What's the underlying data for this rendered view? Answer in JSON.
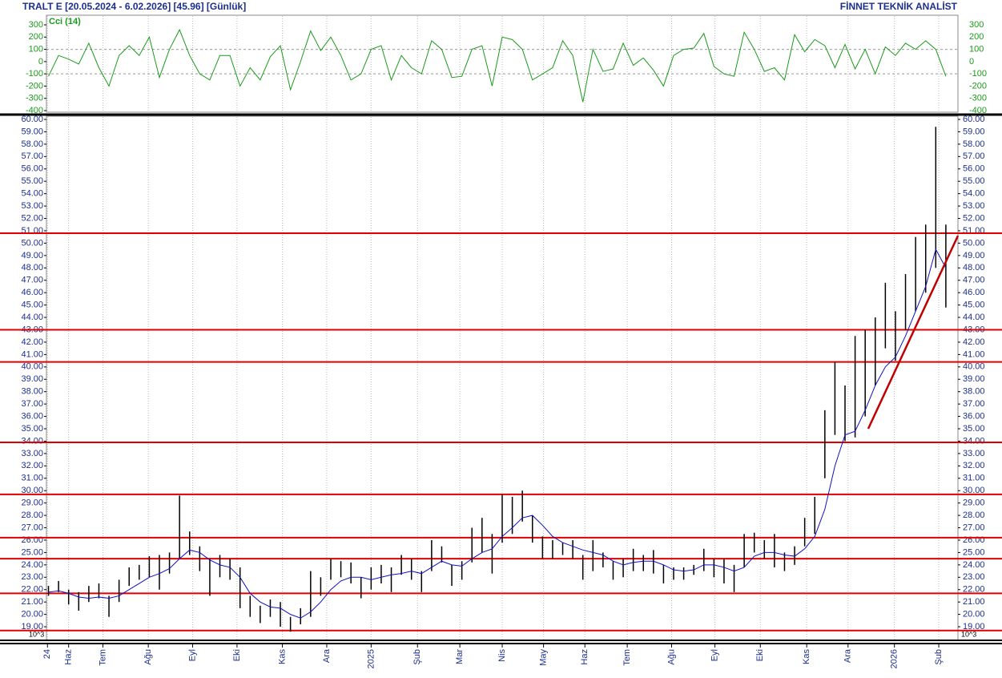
{
  "chart_data": {
    "type": "ohlc",
    "title": "TRALT E  [20.05.2024 - 6.02.2026]  [45.96]  [Günlük]",
    "source": "FİNNET TEKNİK ANALİST",
    "scale_label": "10^3",
    "bar_color": "#000000",
    "ma_color": "#1010c0",
    "level_color": "#e00000",
    "grid": {
      "x": true
    },
    "xlim": [
      -0.2,
      90.2
    ],
    "xticks": [
      {
        "value": -0.1,
        "label": "24"
      },
      {
        "value": 2,
        "label": "Haz"
      },
      {
        "value": 5.4,
        "label": "Tem"
      },
      {
        "value": 9.9,
        "label": "Ağu"
      },
      {
        "value": 14.3,
        "label": "Eyl"
      },
      {
        "value": 18.7,
        "label": "Eki"
      },
      {
        "value": 23.2,
        "label": "Kas"
      },
      {
        "value": 27.6,
        "label": "Ara"
      },
      {
        "value": 32,
        "label": "2025"
      },
      {
        "value": 36.6,
        "label": "Şub"
      },
      {
        "value": 40.8,
        "label": "Mar"
      },
      {
        "value": 45,
        "label": "Nis"
      },
      {
        "value": 49.1,
        "label": "May"
      },
      {
        "value": 53.2,
        "label": "Haz"
      },
      {
        "value": 57.4,
        "label": "Tem"
      },
      {
        "value": 61.8,
        "label": "Ağu"
      },
      {
        "value": 66.1,
        "label": "Eyl"
      },
      {
        "value": 70.6,
        "label": "Eki"
      },
      {
        "value": 75.2,
        "label": "Kas"
      },
      {
        "value": 79.3,
        "label": "Ara"
      },
      {
        "value": 83.9,
        "label": "2026"
      },
      {
        "value": 88.3,
        "label": "Şub"
      }
    ],
    "ylim": [
      18,
      60
    ],
    "yticks": [
      {
        "value": 19,
        "label": "19.00"
      },
      {
        "value": 20,
        "label": "20.00"
      },
      {
        "value": 21,
        "label": "21.00"
      },
      {
        "value": 22,
        "label": "22.00"
      },
      {
        "value": 23,
        "label": "23.00"
      },
      {
        "value": 24,
        "label": "24.00"
      },
      {
        "value": 25,
        "label": "25.00"
      },
      {
        "value": 26,
        "label": "26.00"
      },
      {
        "value": 27,
        "label": "27.00"
      },
      {
        "value": 28,
        "label": "28.00"
      },
      {
        "value": 29,
        "label": "29.00"
      },
      {
        "value": 30,
        "label": "30.00"
      },
      {
        "value": 31,
        "label": "31.00"
      },
      {
        "value": 32,
        "label": "32.00"
      },
      {
        "value": 33,
        "label": "33.00"
      },
      {
        "value": 34,
        "label": "34.00"
      },
      {
        "value": 35,
        "label": "35.00"
      },
      {
        "value": 36,
        "label": "36.00"
      },
      {
        "value": 37,
        "label": "37.00"
      },
      {
        "value": 38,
        "label": "38.00"
      },
      {
        "value": 39,
        "label": "39.00"
      },
      {
        "value": 40,
        "label": "40.00"
      },
      {
        "value": 41,
        "label": "41.00"
      },
      {
        "value": 42,
        "label": "42.00"
      },
      {
        "value": 43,
        "label": "43.00"
      },
      {
        "value": 44,
        "label": "44.00"
      },
      {
        "value": 45,
        "label": "45.00"
      },
      {
        "value": 46,
        "label": "46.00"
      },
      {
        "value": 47,
        "label": "47.00"
      },
      {
        "value": 48,
        "label": "48.00"
      },
      {
        "value": 49,
        "label": "49.00"
      },
      {
        "value": 50,
        "label": "50.00"
      },
      {
        "value": 51,
        "label": "51.00"
      },
      {
        "value": 52,
        "label": "52.00"
      },
      {
        "value": 53,
        "label": "53.00"
      },
      {
        "value": 54,
        "label": "54.00"
      },
      {
        "value": 55,
        "label": "55.00"
      },
      {
        "value": 56,
        "label": "56.00"
      },
      {
        "value": 57,
        "label": "57.00"
      },
      {
        "value": 58,
        "label": "58.00"
      },
      {
        "value": 59,
        "label": "59.00"
      },
      {
        "value": 60,
        "label": "60.00"
      }
    ],
    "high": [
      22.3,
      22.7,
      22.0,
      21.8,
      22.3,
      22.5,
      21.5,
      22.8,
      23.8,
      24.0,
      24.7,
      24.8,
      25.0,
      29.6,
      26.7,
      25.5,
      24.5,
      24.8,
      24.5,
      23.8,
      21.5,
      20.7,
      21.2,
      21.0,
      19.8,
      20.5,
      23.5,
      23.0,
      24.5,
      24.3,
      24.2,
      23.0,
      23.8,
      24.0,
      23.8,
      24.8,
      24.5,
      23.5,
      26.0,
      25.5,
      24.0,
      24.3,
      27.0,
      27.8,
      26.5,
      29.7,
      29.5,
      30.0,
      28.0,
      26.3,
      26.0,
      25.8,
      26.0,
      24.8,
      26.0,
      25.0,
      24.3,
      24.5,
      25.3,
      24.8,
      25.2,
      24.0,
      23.8,
      23.8,
      24.0,
      25.3,
      24.5,
      24.5,
      24.0,
      26.5,
      26.6,
      26.0,
      26.5,
      25.0,
      25.5,
      27.8,
      29.5,
      36.5,
      40.4,
      38.5,
      42.5,
      43.0,
      44.0,
      46.8,
      44.5,
      47.5,
      50.5,
      51.5,
      59.4,
      51.5
    ],
    "low": [
      21.5,
      21.8,
      20.8,
      20.3,
      21.0,
      21.3,
      19.8,
      21.0,
      22.3,
      22.8,
      23.0,
      22.0,
      23.3,
      24.5,
      24.8,
      23.5,
      21.5,
      23.0,
      22.8,
      20.5,
      19.8,
      19.3,
      19.8,
      19.0,
      18.6,
      19.2,
      19.8,
      21.5,
      22.8,
      23.0,
      22.5,
      21.3,
      22.0,
      22.5,
      21.8,
      23.2,
      22.8,
      21.8,
      23.5,
      24.2,
      22.3,
      22.8,
      24.2,
      25.0,
      23.3,
      25.8,
      26.5,
      27.5,
      25.8,
      24.5,
      24.5,
      24.8,
      24.5,
      22.8,
      23.5,
      23.8,
      22.8,
      23.0,
      23.5,
      23.5,
      23.3,
      22.5,
      22.8,
      22.8,
      23.2,
      23.5,
      23.0,
      22.5,
      21.8,
      23.8,
      25.0,
      24.5,
      23.8,
      23.5,
      24.0,
      25.5,
      26.5,
      31.0,
      34.5,
      34.0,
      34.3,
      36.0,
      38.5,
      41.5,
      40.5,
      43.0,
      44.5,
      46.0,
      48.0,
      44.8
    ],
    "ma": [
      21.8,
      21.9,
      21.7,
      21.4,
      21.3,
      21.4,
      21.3,
      21.5,
      22.0,
      22.5,
      23.0,
      23.3,
      23.7,
      24.5,
      25.2,
      25.0,
      24.4,
      24.0,
      23.8,
      23.0,
      21.7,
      21.0,
      20.6,
      20.5,
      20.0,
      19.7,
      20.2,
      21.0,
      22.0,
      22.7,
      23.0,
      23.0,
      22.8,
      23.0,
      23.2,
      23.3,
      23.5,
      23.3,
      23.8,
      24.3,
      24.0,
      23.9,
      24.5,
      25.0,
      25.3,
      26.3,
      27.0,
      27.8,
      28.0,
      27.2,
      26.3,
      25.8,
      25.5,
      25.2,
      25.0,
      24.8,
      24.3,
      24.0,
      24.2,
      24.3,
      24.3,
      24.0,
      23.6,
      23.5,
      23.6,
      24.0,
      24.0,
      23.8,
      23.5,
      23.8,
      24.7,
      25.0,
      25.0,
      24.8,
      24.7,
      25.3,
      26.3,
      28.5,
      32.0,
      34.5,
      34.8,
      36.5,
      38.5,
      40.0,
      40.8,
      42.5,
      44.5,
      46.5,
      49.5,
      48.0
    ],
    "levels": [
      50.8,
      43.0,
      40.4,
      33.9,
      29.7,
      26.2,
      24.5,
      21.7,
      18.7
    ],
    "trendline": {
      "x": [
        81.3,
        90.2
      ],
      "y": [
        35.0,
        50.6
      ]
    },
    "indicator": {
      "label": "Cci (14)",
      "color": "#1a9a1a",
      "ylim": [
        -400,
        300
      ],
      "yticks": [
        300,
        200,
        100,
        0,
        -100,
        -200,
        -300,
        -400
      ],
      "dashed_levels": [
        100,
        -100
      ],
      "values": [
        -120,
        50,
        20,
        -20,
        150,
        -50,
        -200,
        50,
        130,
        50,
        200,
        -130,
        100,
        260,
        50,
        -100,
        -150,
        50,
        50,
        -200,
        -50,
        -150,
        40,
        130,
        -230,
        0,
        250,
        90,
        200,
        50,
        -150,
        -100,
        100,
        130,
        -150,
        50,
        -50,
        -100,
        170,
        100,
        -130,
        -120,
        100,
        130,
        -200,
        200,
        180,
        100,
        -150,
        -100,
        -50,
        170,
        50,
        -330,
        100,
        -80,
        -60,
        150,
        -30,
        30,
        -70,
        -200,
        50,
        100,
        110,
        230,
        -40,
        -100,
        -120,
        240,
        100,
        -80,
        -50,
        -150,
        220,
        80,
        180,
        130,
        -50,
        140,
        -60,
        100,
        -100,
        120,
        50,
        150,
        100,
        170,
        100,
        -120
      ]
    }
  }
}
